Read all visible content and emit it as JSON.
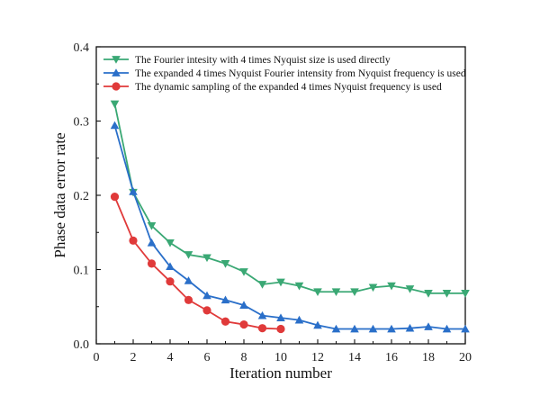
{
  "chart_data": {
    "type": "line",
    "title": "",
    "xlabel": "Iteration number",
    "ylabel": "Phase data error rate",
    "xlim": [
      0,
      20
    ],
    "ylim": [
      0,
      0.4
    ],
    "xticks": [
      0,
      2,
      4,
      6,
      8,
      10,
      12,
      14,
      16,
      18,
      20
    ],
    "yticks": [
      0.0,
      0.1,
      0.2,
      0.3,
      0.4
    ],
    "xtick_labels": [
      "0",
      "2",
      "4",
      "6",
      "8",
      "10",
      "12",
      "14",
      "16",
      "18",
      "20"
    ],
    "ytick_labels": [
      "0.0",
      "0.1",
      "0.2",
      "0.3",
      "0.4"
    ],
    "grid": false,
    "legend_position": "top-left",
    "series": [
      {
        "name": "The Fourier intesity with 4 times Nyquist size is used directly",
        "color": "#3aa874",
        "marker": "triangle-down",
        "x": [
          1,
          2,
          3,
          4,
          5,
          6,
          7,
          8,
          9,
          10,
          11,
          12,
          13,
          14,
          15,
          16,
          17,
          18,
          19,
          20
        ],
        "y": [
          0.323,
          0.204,
          0.159,
          0.136,
          0.12,
          0.116,
          0.108,
          0.097,
          0.08,
          0.083,
          0.078,
          0.07,
          0.07,
          0.07,
          0.076,
          0.078,
          0.074,
          0.068,
          0.068,
          0.068
        ]
      },
      {
        "name": "The expanded 4 times Nyquist Fourier intensity from Nyquist frequency is used",
        "color": "#2a6fc9",
        "marker": "triangle-up",
        "x": [
          1,
          2,
          3,
          4,
          5,
          6,
          7,
          8,
          9,
          10,
          11,
          12,
          13,
          14,
          15,
          16,
          17,
          18,
          19,
          20
        ],
        "y": [
          0.294,
          0.205,
          0.136,
          0.104,
          0.085,
          0.065,
          0.059,
          0.052,
          0.038,
          0.035,
          0.032,
          0.025,
          0.02,
          0.02,
          0.02,
          0.02,
          0.021,
          0.023,
          0.02,
          0.02
        ]
      },
      {
        "name": "The dynamic sampling of the expanded 4 times Nyquist frequency is used",
        "color": "#e03a3a",
        "marker": "circle",
        "x": [
          1,
          2,
          3,
          4,
          5,
          6,
          7,
          8,
          9,
          10
        ],
        "y": [
          0.198,
          0.139,
          0.108,
          0.084,
          0.059,
          0.045,
          0.03,
          0.026,
          0.021,
          0.02
        ]
      }
    ]
  }
}
